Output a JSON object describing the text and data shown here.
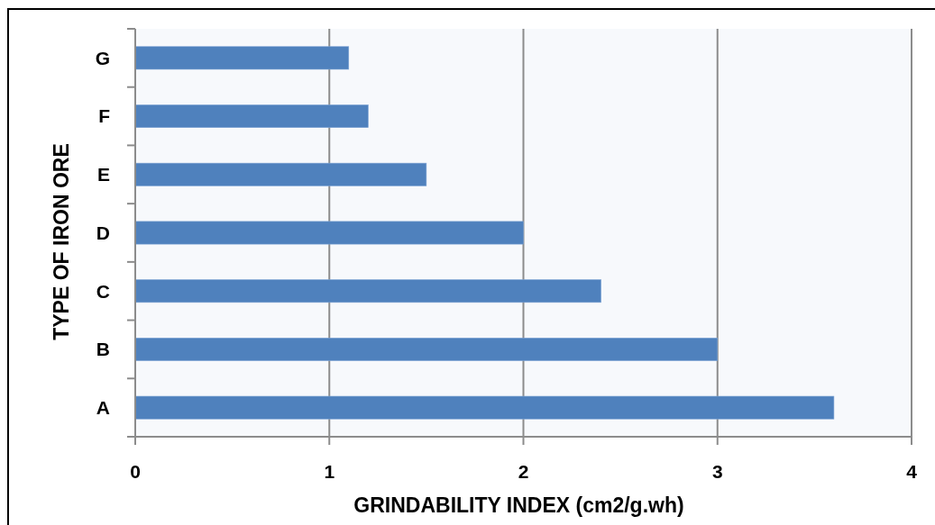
{
  "chart_data": {
    "type": "bar",
    "orientation": "horizontal",
    "xlabel": "GRINDABILITY INDEX (cm2/g.wh)",
    "ylabel": "TYPE OF IRON ORE",
    "categories": [
      "G",
      "F",
      "E",
      "D",
      "C",
      "B",
      "A"
    ],
    "values": [
      1.1,
      1.2,
      1.5,
      2.0,
      2.4,
      3.0,
      3.6
    ],
    "color": "#4f81bd",
    "xlim": [
      0,
      4
    ],
    "xticks": [
      0,
      1,
      2,
      3,
      4
    ],
    "grid": "x"
  }
}
